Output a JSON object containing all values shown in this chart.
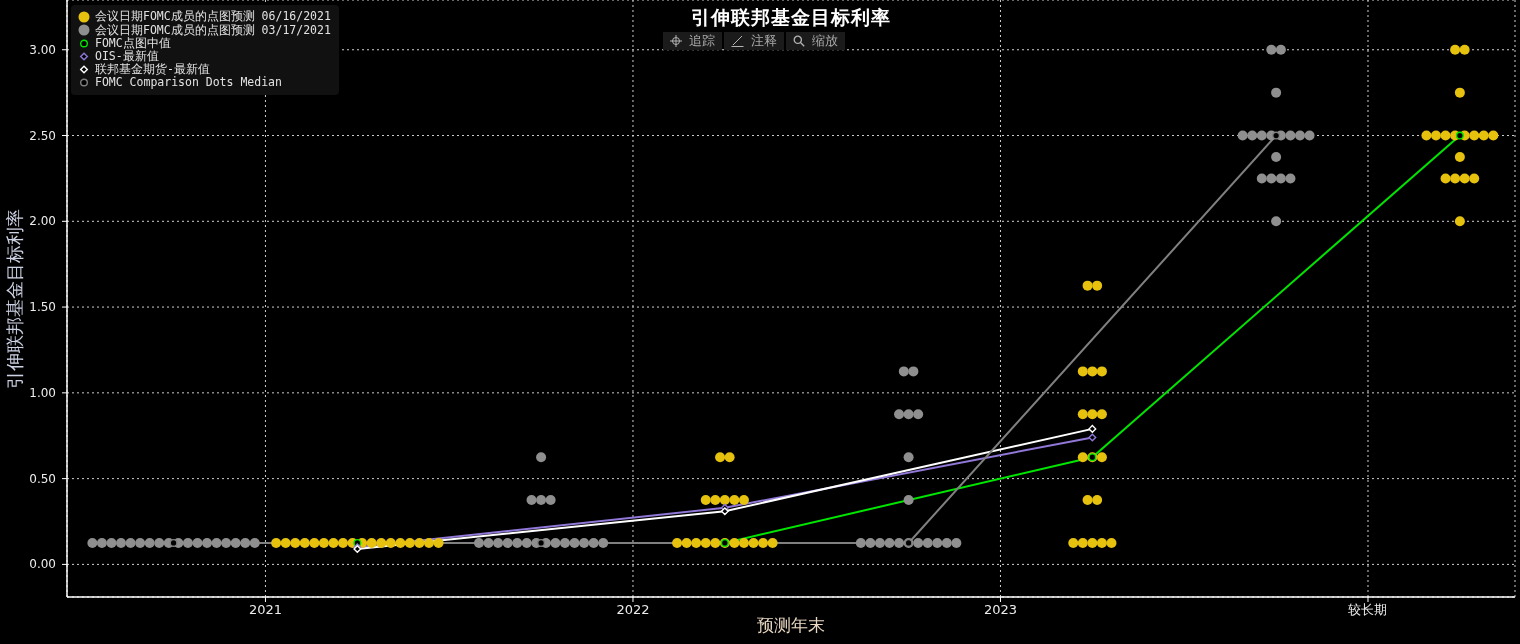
{
  "chart_data": {
    "type": "scatter",
    "title": "引伸联邦基金目标利率",
    "xlabel": "预测年末",
    "ylabel": "引伸联邦基金目标利率",
    "annotations": [
      "追踪",
      "注释",
      "缩放"
    ],
    "xlim": [
      2020.46,
      2024.4
    ],
    "xticks": [
      2021,
      2022,
      2023,
      {
        "value": 2024,
        "label": "较长期"
      }
    ],
    "ylim": [
      -0.19,
      3.29
    ],
    "yticks": [
      {
        "value": 0,
        "label": "0.00"
      },
      {
        "value": 0.5,
        "label": "0.50"
      },
      {
        "value": 1,
        "label": "1.00"
      },
      {
        "value": 1.5,
        "label": "1.50"
      },
      {
        "value": 2,
        "label": "2.00"
      },
      {
        "value": 2.5,
        "label": "2.50"
      },
      {
        "value": 3,
        "label": "3.00"
      }
    ],
    "grid": true,
    "legend": "top left",
    "series": [
      {
        "name": "会议日期FOMC成员的点图预测 06/16/2021",
        "color": "#e6c20e",
        "marker": "circle",
        "x": [
          2021.029,
          2021.055,
          2021.081,
          2021.107,
          2021.133,
          2021.159,
          2021.185,
          2021.211,
          2021.237,
          2021.263,
          2021.289,
          2021.315,
          2021.341,
          2021.367,
          2021.393,
          2021.419,
          2021.445,
          2021.471,
          2022.12,
          2022.146,
          2022.172,
          2022.198,
          2022.224,
          2022.25,
          2022.276,
          2022.302,
          2022.328,
          2022.354,
          2022.38,
          2022.198,
          2022.224,
          2022.25,
          2022.276,
          2022.302,
          2022.237,
          2022.263,
          2023.198,
          2023.224,
          2023.25,
          2023.276,
          2023.302,
          2023.237,
          2023.263,
          2023.224,
          2023.25,
          2023.276,
          2023.224,
          2023.25,
          2023.276,
          2023.224,
          2023.25,
          2023.276,
          2023.237,
          2023.263,
          2024.25,
          2024.211,
          2024.237,
          2024.263,
          2024.289,
          2024.25,
          2024.159,
          2024.185,
          2024.211,
          2024.237,
          2024.263,
          2024.289,
          2024.315,
          2024.341,
          2024.25,
          2024.237,
          2024.263
        ],
        "values": [
          0.125,
          0.125,
          0.125,
          0.125,
          0.125,
          0.125,
          0.125,
          0.125,
          0.125,
          0.125,
          0.125,
          0.125,
          0.125,
          0.125,
          0.125,
          0.125,
          0.125,
          0.125,
          0.125,
          0.125,
          0.125,
          0.125,
          0.125,
          0.125,
          0.125,
          0.125,
          0.125,
          0.125,
          0.125,
          0.375,
          0.375,
          0.375,
          0.375,
          0.375,
          0.625,
          0.625,
          0.125,
          0.125,
          0.125,
          0.125,
          0.125,
          0.375,
          0.375,
          0.625,
          0.625,
          0.625,
          0.875,
          0.875,
          0.875,
          1.125,
          1.125,
          1.125,
          1.625,
          1.625,
          2.0,
          2.25,
          2.25,
          2.25,
          2.25,
          2.375,
          2.5,
          2.5,
          2.5,
          2.5,
          2.5,
          2.5,
          2.5,
          2.5,
          2.75,
          3.0,
          3.0
        ]
      },
      {
        "name": "会议日期FOMC成员的点图预测 03/17/2021",
        "color": "#8f8f8f",
        "marker": "circle",
        "x": [
          2020.529,
          2020.555,
          2020.581,
          2020.607,
          2020.633,
          2020.659,
          2020.685,
          2020.711,
          2020.737,
          2020.763,
          2020.789,
          2020.815,
          2020.841,
          2020.867,
          2020.893,
          2020.919,
          2020.945,
          2020.971,
          2021.581,
          2021.607,
          2021.633,
          2021.659,
          2021.685,
          2021.711,
          2021.737,
          2021.763,
          2021.789,
          2021.815,
          2021.841,
          2021.867,
          2021.893,
          2021.919,
          2021.724,
          2021.75,
          2021.776,
          2021.75,
          2022.62,
          2022.646,
          2022.672,
          2022.698,
          2022.724,
          2022.75,
          2022.776,
          2022.802,
          2022.828,
          2022.854,
          2022.88,
          2022.75,
          2022.75,
          2022.724,
          2022.75,
          2022.776,
          2022.737,
          2022.763,
          2023.75,
          2023.711,
          2023.737,
          2023.763,
          2023.789,
          2023.75,
          2023.659,
          2023.685,
          2023.711,
          2023.737,
          2023.763,
          2023.789,
          2023.815,
          2023.841,
          2023.75,
          2023.737,
          2023.763
        ],
        "values": [
          0.125,
          0.125,
          0.125,
          0.125,
          0.125,
          0.125,
          0.125,
          0.125,
          0.125,
          0.125,
          0.125,
          0.125,
          0.125,
          0.125,
          0.125,
          0.125,
          0.125,
          0.125,
          0.125,
          0.125,
          0.125,
          0.125,
          0.125,
          0.125,
          0.125,
          0.125,
          0.125,
          0.125,
          0.125,
          0.125,
          0.125,
          0.125,
          0.375,
          0.375,
          0.375,
          0.625,
          0.125,
          0.125,
          0.125,
          0.125,
          0.125,
          0.125,
          0.125,
          0.125,
          0.125,
          0.125,
          0.125,
          0.375,
          0.625,
          0.875,
          0.875,
          0.875,
          1.125,
          1.125,
          2.0,
          2.25,
          2.25,
          2.25,
          2.25,
          2.375,
          2.5,
          2.5,
          2.5,
          2.5,
          2.5,
          2.5,
          2.5,
          2.5,
          2.75,
          3.0,
          3.0
        ]
      },
      {
        "name": "FOMC点图中值",
        "type": "line",
        "color": "#00e600",
        "marker": "circle",
        "x": [
          2021.25,
          2022.25,
          2023.25,
          2024.25
        ],
        "values": [
          0.125,
          0.125,
          0.625,
          2.5
        ]
      },
      {
        "name": "OIS-最新值",
        "type": "line",
        "color": "#9077d8",
        "marker": "diamond",
        "x": [
          2021.25,
          2022.25,
          2023.25
        ],
        "values": [
          0.1,
          0.33,
          0.74
        ]
      },
      {
        "name": "联邦基金期货-最新值",
        "type": "line",
        "color": "#ffffff",
        "marker": "diamond",
        "x": [
          2021.25,
          2022.25,
          2023.25
        ],
        "values": [
          0.09,
          0.31,
          0.79
        ]
      },
      {
        "name": "FOMC Comparison Dots Median",
        "type": "line",
        "color": "#808080",
        "marker": "circle",
        "x": [
          2020.75,
          2021.75,
          2022.75,
          2023.75
        ],
        "values": [
          0.125,
          0.125,
          0.125,
          2.5
        ]
      }
    ]
  }
}
